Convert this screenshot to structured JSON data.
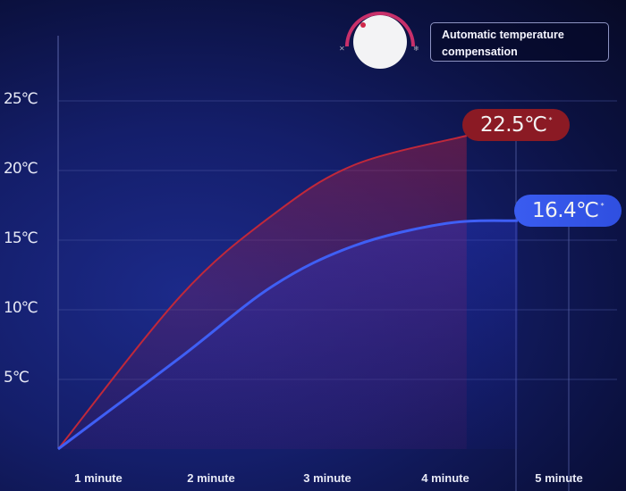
{
  "chart_data": {
    "type": "line",
    "title": "",
    "xlabel": "",
    "ylabel": "",
    "x_tick_labels": [
      "1 minute",
      "2 minute",
      "3 minute",
      "4 minute",
      "5 minute"
    ],
    "y_tick_labels": [
      "5℃",
      "10℃",
      "15℃",
      "20℃",
      "25℃"
    ],
    "y_ticks": [
      5,
      10,
      15,
      20,
      25
    ],
    "xlim": [
      0,
      5
    ],
    "ylim": [
      0,
      25
    ],
    "grid": true,
    "series": [
      {
        "color": "#c0283a",
        "points": [
          [
            0,
            0
          ],
          [
            1.2,
            11
          ],
          [
            2.1,
            16.8
          ],
          [
            2.9,
            20.4
          ],
          [
            4.0,
            22.5
          ]
        ],
        "end_label": "22.5℃",
        "end_mark": "*"
      },
      {
        "color": "#3f5ff5",
        "points": [
          [
            0,
            0
          ],
          [
            1.2,
            6.6
          ],
          [
            2.1,
            11.7
          ],
          [
            2.9,
            14.6
          ],
          [
            3.8,
            16.2
          ],
          [
            4.5,
            16.4
          ]
        ],
        "end_label": "16.4℃",
        "end_mark": "*"
      }
    ]
  },
  "badge": {
    "text_line1": "Automatic temperature",
    "text_line2": "compensation"
  },
  "knob": {
    "left_icon": "fan-icon",
    "right_icon": "snowflake-icon",
    "accent": "#d0306a"
  }
}
